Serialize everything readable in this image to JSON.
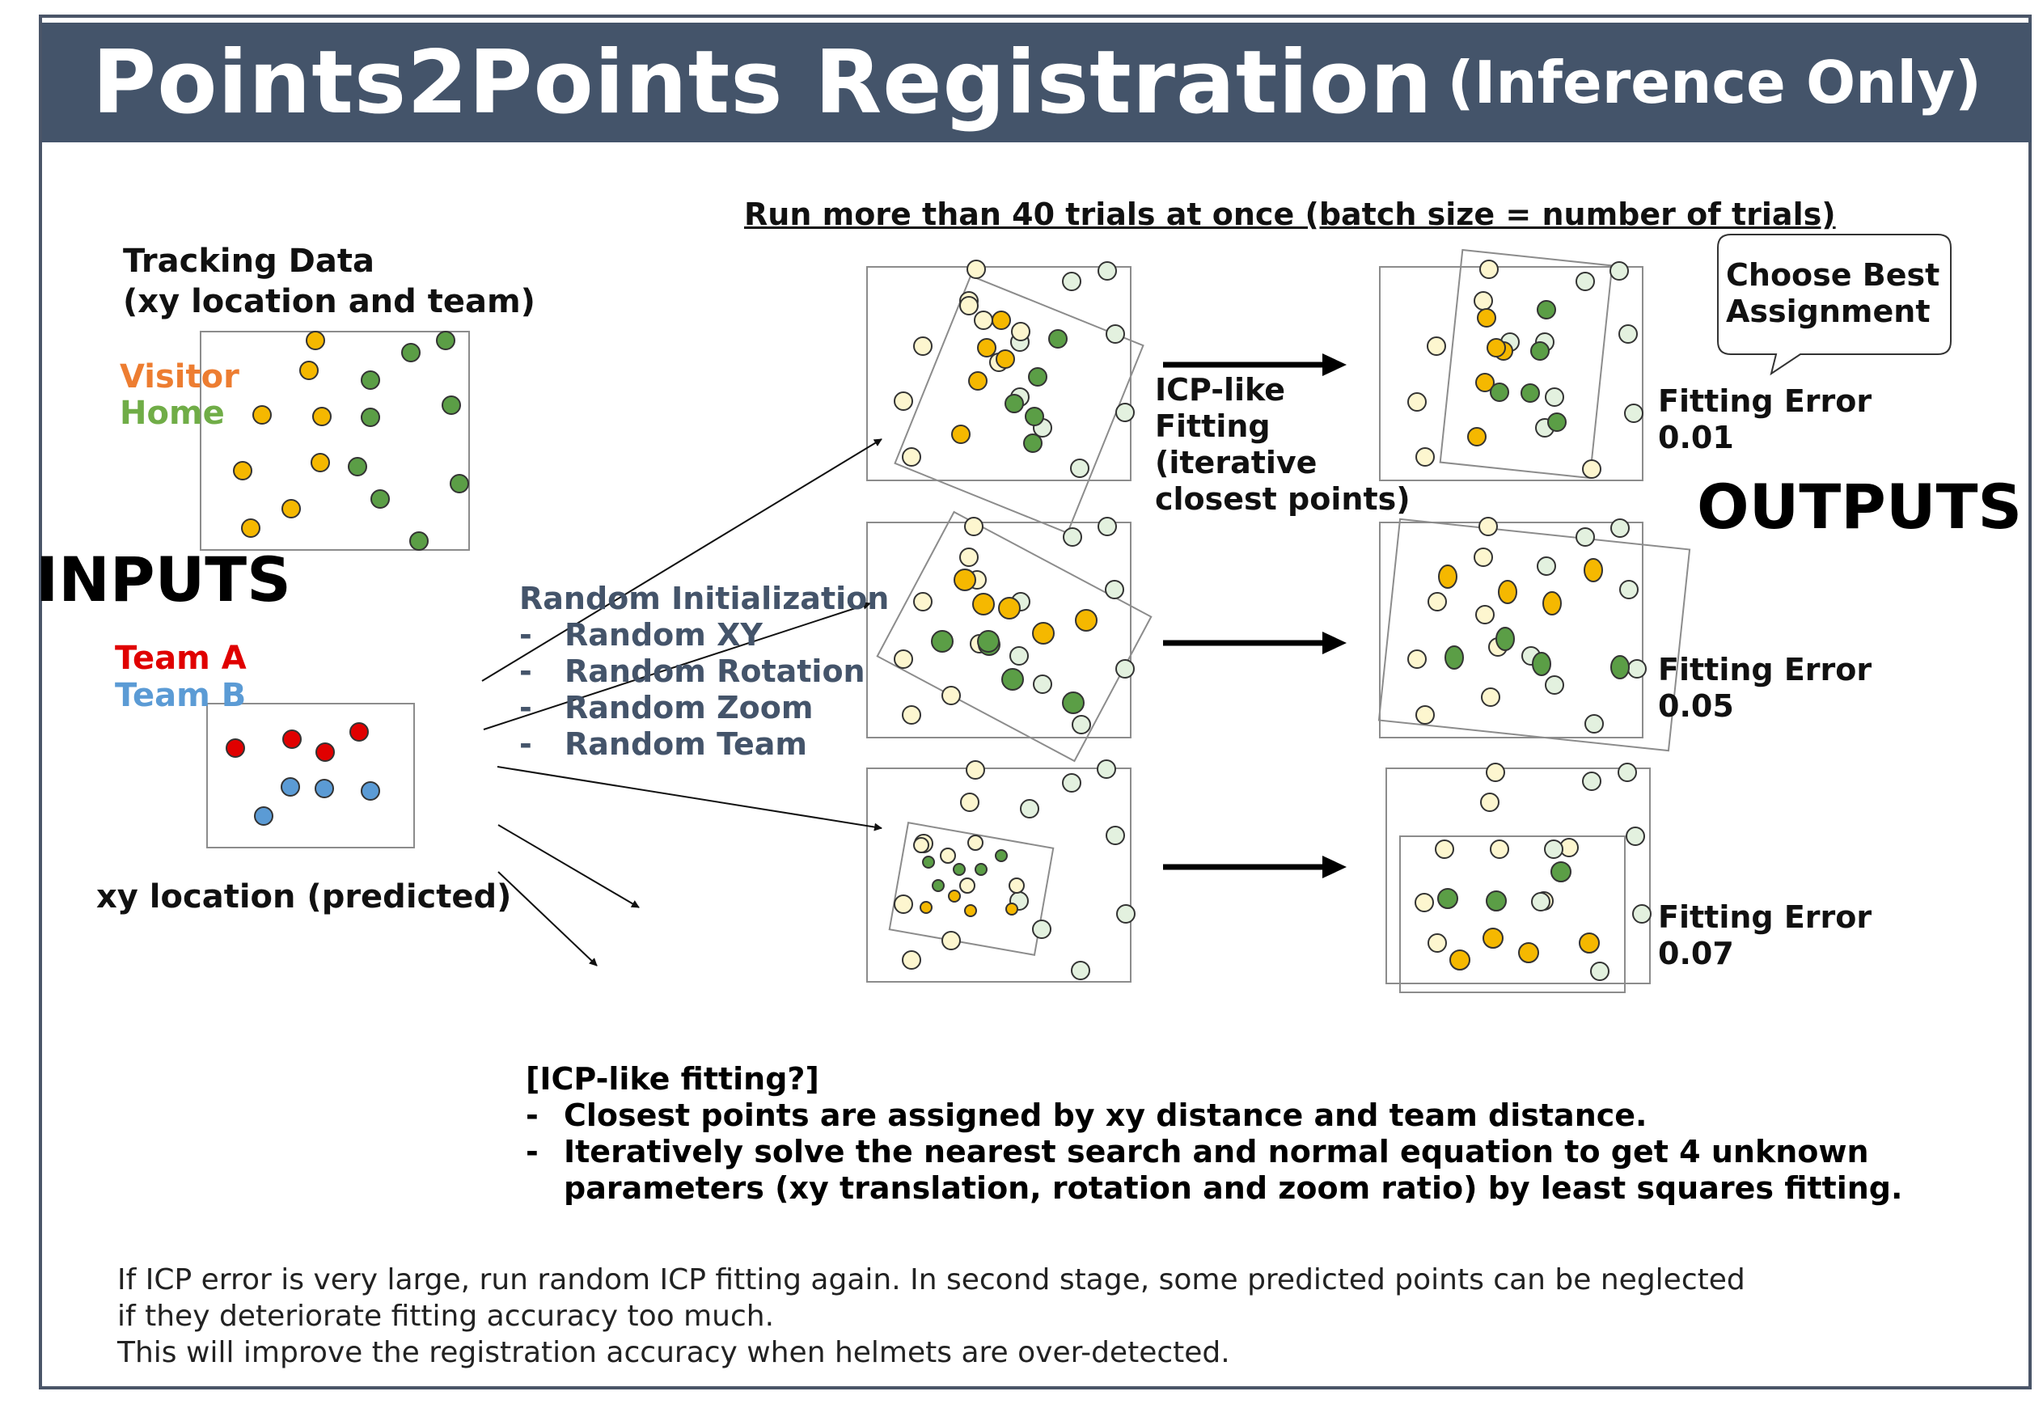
{
  "title": {
    "main": "Points2Points Registration",
    "sub": "(Inference Only)"
  },
  "inputs": {
    "heading": "INPUTS",
    "tracking": {
      "line1": "Tracking Data",
      "line2": "(xy location and team)",
      "legend_a": "Visitor",
      "legend_b": "Home"
    },
    "predicted": {
      "legend_a": "Team A",
      "legend_b": "Team B",
      "caption": "xy location (predicted)"
    }
  },
  "batch_note": "Run more than 40 trials at once (batch size = number of trials)",
  "random_init": {
    "title": "Random Initialization",
    "items": [
      "Random XY",
      "Random Rotation",
      "Random Zoom",
      "Random Team"
    ]
  },
  "icp_label": [
    "ICP-like",
    "Fitting",
    "(iterative",
    "closest points)"
  ],
  "outputs": {
    "heading": "OUTPUTS",
    "callout": [
      "Choose Best",
      "Assignment"
    ],
    "error_label": "Fitting Error",
    "errors": [
      "0.01",
      "0.05",
      "0.07"
    ]
  },
  "icp_notes": {
    "title": "[ICP-like fitting?]",
    "items": [
      "Closest points are assigned by xy distance and team distance.",
      "Iteratively solve the nearest search and normal equation to get 4 unknown"
    ],
    "continuation": "parameters (xy translation, rotation and zoom ratio) by least squares fitting."
  },
  "footer": [
    "If ICP error is very large, run random ICP fitting again. In second stage, some predicted points can be neglected",
    "if they deteriorate fitting accuracy too much.",
    "This will improve the registration accuracy when helmets are over-detected."
  ],
  "colors": {
    "banner": "#44546a",
    "visitor": "#f5b800",
    "home": "#5b9e46",
    "team_a": "#e00000",
    "team_b": "#5b9bd5",
    "pale_yellow": "#fdf6cf",
    "pale_green": "#e3f1df",
    "legend_visitor": "#ed7d31",
    "legend_home": "#70ad47"
  }
}
